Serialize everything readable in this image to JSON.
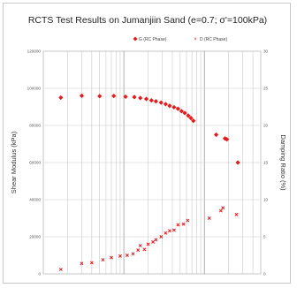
{
  "chart_data": {
    "type": "scatter",
    "title": "RCTS Test Results on Jumanjiin Sand (e=0.7; σ'=100kPa)",
    "ylabel": "Shear Modulus (kPa)",
    "y2label": "Damping Ratio (%)",
    "xscale": "log",
    "ylim": [
      0,
      120000
    ],
    "y2lim": [
      0,
      30
    ],
    "yticks": [
      "0",
      "20000",
      "40000",
      "60000",
      "80000",
      "100000",
      "120000"
    ],
    "y2ticks": [
      "0",
      "5",
      "10",
      "15",
      "20",
      "25",
      "30"
    ],
    "grid": true,
    "legend_position": "top",
    "series": [
      {
        "name": "G (RC Phase)",
        "axis": "left",
        "marker": "diamond",
        "color": "#e41a1c",
        "points": [
          {
            "x": 1.65e-05,
            "y": 95000
          },
          {
            "x": 3e-05,
            "y": 96000
          },
          {
            "x": 5e-05,
            "y": 95800
          },
          {
            "x": 7.5e-05,
            "y": 95900
          },
          {
            "x": 0.000105,
            "y": 95500
          },
          {
            "x": 0.000135,
            "y": 95300
          },
          {
            "x": 0.00016,
            "y": 94800
          },
          {
            "x": 0.00019,
            "y": 94300
          },
          {
            "x": 0.00022,
            "y": 93500
          },
          {
            "x": 0.00025,
            "y": 93000
          },
          {
            "x": 0.00029,
            "y": 92300
          },
          {
            "x": 0.00033,
            "y": 91500
          },
          {
            "x": 0.00037,
            "y": 90600
          },
          {
            "x": 0.00042,
            "y": 89800
          },
          {
            "x": 0.00047,
            "y": 89000
          },
          {
            "x": 0.00052,
            "y": 87700
          },
          {
            "x": 0.00057,
            "y": 86700
          },
          {
            "x": 0.00063,
            "y": 85300
          },
          {
            "x": 0.00068,
            "y": 84000
          },
          {
            "x": 0.00073,
            "y": 82500
          },
          {
            "x": 0.0014,
            "y": 75000
          },
          {
            "x": 0.0018,
            "y": 73000
          },
          {
            "x": 0.0019,
            "y": 72500
          },
          {
            "x": 0.0026,
            "y": 60000
          }
        ]
      },
      {
        "name": "D (RC Phase)",
        "axis": "right",
        "marker": "x",
        "color": "#e41a1c",
        "points": [
          {
            "x": 1.65e-05,
            "y": 0.6
          },
          {
            "x": 3e-05,
            "y": 1.4
          },
          {
            "x": 4e-05,
            "y": 1.5
          },
          {
            "x": 5.5e-05,
            "y": 1.9
          },
          {
            "x": 7e-05,
            "y": 2.2
          },
          {
            "x": 9e-05,
            "y": 2.4
          },
          {
            "x": 0.00011,
            "y": 2.5
          },
          {
            "x": 0.00013,
            "y": 2.7
          },
          {
            "x": 0.00015,
            "y": 3.2
          },
          {
            "x": 0.00016,
            "y": 3.8
          },
          {
            "x": 0.00018,
            "y": 3.3
          },
          {
            "x": 0.0002,
            "y": 4.0
          },
          {
            "x": 0.00023,
            "y": 4.3
          },
          {
            "x": 0.00025,
            "y": 4.6
          },
          {
            "x": 0.00029,
            "y": 5.0
          },
          {
            "x": 0.00033,
            "y": 5.5
          },
          {
            "x": 0.00037,
            "y": 5.8
          },
          {
            "x": 0.00042,
            "y": 5.9
          },
          {
            "x": 0.00047,
            "y": 6.6
          },
          {
            "x": 0.00055,
            "y": 6.7
          },
          {
            "x": 0.00062,
            "y": 7.2
          },
          {
            "x": 0.00115,
            "y": 7.5
          },
          {
            "x": 0.0016,
            "y": 8.5
          },
          {
            "x": 0.0017,
            "y": 8.9
          },
          {
            "x": 0.0025,
            "y": 8.0
          }
        ]
      }
    ]
  }
}
